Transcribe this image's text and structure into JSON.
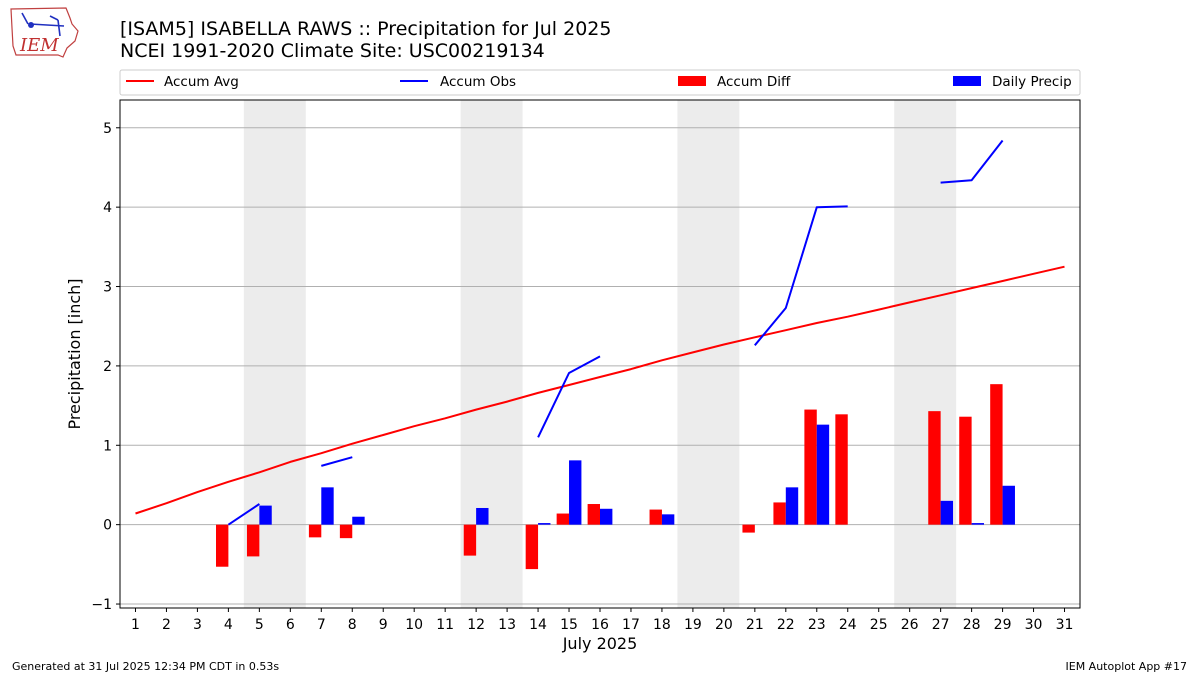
{
  "logo": {
    "text": "IEM"
  },
  "header": {
    "title_line1": "[ISAM5] ISABELLA RAWS :: Precipitation for Jul 2025",
    "title_line2": "NCEI 1991-2020 Climate Site: USC00219134"
  },
  "footer": {
    "left": "Generated at 31 Jul 2025 12:34 PM CDT in 0.53s",
    "right": "IEM Autoplot App #17"
  },
  "chart_data": {
    "type": "bar",
    "xlabel": "July 2025",
    "ylabel": "Precipitation [inch]",
    "xlim": [
      0.5,
      31.5
    ],
    "ylim": [
      -1.05,
      5.35
    ],
    "x_ticks": [
      1,
      2,
      3,
      4,
      5,
      6,
      7,
      8,
      9,
      10,
      11,
      12,
      13,
      14,
      15,
      16,
      17,
      18,
      19,
      20,
      21,
      22,
      23,
      24,
      25,
      26,
      27,
      28,
      29,
      30,
      31
    ],
    "y_ticks": [
      -1,
      0,
      1,
      2,
      3,
      4,
      5
    ],
    "grid": "horizontal",
    "weekend_shading": [
      [
        4.5,
        6.5
      ],
      [
        11.5,
        13.5
      ],
      [
        18.5,
        20.5
      ],
      [
        25.5,
        27.5
      ]
    ],
    "legend_position": "top",
    "legend": [
      {
        "label": "Accum Avg",
        "kind": "line",
        "color": "#ff0000"
      },
      {
        "label": "Accum Obs",
        "kind": "line",
        "color": "#0000ff"
      },
      {
        "label": "Accum Diff",
        "kind": "bar",
        "color": "#ff0000"
      },
      {
        "label": "Daily Precip",
        "kind": "bar",
        "color": "#0000ff"
      }
    ],
    "series": [
      {
        "name": "Accum Avg",
        "kind": "line",
        "color": "#ff0000",
        "points": [
          [
            1,
            0.14
          ],
          [
            2,
            0.27
          ],
          [
            3,
            0.41
          ],
          [
            4,
            0.54
          ],
          [
            5,
            0.66
          ],
          [
            6,
            0.79
          ],
          [
            7,
            0.9
          ],
          [
            8,
            1.02
          ],
          [
            9,
            1.13
          ],
          [
            10,
            1.24
          ],
          [
            11,
            1.34
          ],
          [
            12,
            1.45
          ],
          [
            13,
            1.55
          ],
          [
            14,
            1.66
          ],
          [
            15,
            1.76
          ],
          [
            16,
            1.86
          ],
          [
            17,
            1.96
          ],
          [
            18,
            2.07
          ],
          [
            19,
            2.17
          ],
          [
            20,
            2.27
          ],
          [
            21,
            2.36
          ],
          [
            22,
            2.45
          ],
          [
            23,
            2.54
          ],
          [
            24,
            2.62
          ],
          [
            25,
            2.71
          ],
          [
            26,
            2.8
          ],
          [
            27,
            2.89
          ],
          [
            28,
            2.98
          ],
          [
            29,
            3.07
          ],
          [
            30,
            3.16
          ],
          [
            31,
            3.25
          ]
        ]
      },
      {
        "name": "Accum Obs",
        "kind": "line",
        "color": "#0000ff",
        "segments": [
          [
            [
              4,
              0.0
            ],
            [
              5,
              0.26
            ]
          ],
          [
            [
              7,
              0.74
            ],
            [
              8,
              0.85
            ]
          ],
          [
            [
              14,
              1.1
            ],
            [
              15,
              1.91
            ],
            [
              16,
              2.12
            ]
          ],
          [
            [
              21,
              2.26
            ],
            [
              22,
              2.73
            ],
            [
              23,
              4.0
            ],
            [
              24,
              4.01
            ]
          ],
          [
            [
              27,
              4.31
            ],
            [
              28,
              4.34
            ],
            [
              29,
              4.84
            ]
          ]
        ]
      },
      {
        "name": "Accum Diff",
        "kind": "bar",
        "color": "#ff0000",
        "points": [
          [
            4,
            -0.53
          ],
          [
            5,
            -0.4
          ],
          [
            7,
            -0.16
          ],
          [
            8,
            -0.17
          ],
          [
            12,
            -0.39
          ],
          [
            14,
            -0.56
          ],
          [
            15,
            0.14
          ],
          [
            16,
            0.26
          ],
          [
            18,
            0.19
          ],
          [
            21,
            -0.1
          ],
          [
            22,
            0.28
          ],
          [
            23,
            1.45
          ],
          [
            24,
            1.39
          ],
          [
            27,
            1.43
          ],
          [
            28,
            1.36
          ],
          [
            29,
            1.77
          ]
        ]
      },
      {
        "name": "Daily Precip",
        "kind": "bar",
        "color": "#0000ff",
        "points": [
          [
            5,
            0.24
          ],
          [
            7,
            0.47
          ],
          [
            8,
            0.1
          ],
          [
            12,
            0.21
          ],
          [
            14,
            0.02
          ],
          [
            15,
            0.81
          ],
          [
            16,
            0.2
          ],
          [
            18,
            0.13
          ],
          [
            22,
            0.47
          ],
          [
            23,
            1.26
          ],
          [
            27,
            0.3
          ],
          [
            28,
            0.02
          ],
          [
            29,
            0.49
          ]
        ]
      }
    ]
  }
}
